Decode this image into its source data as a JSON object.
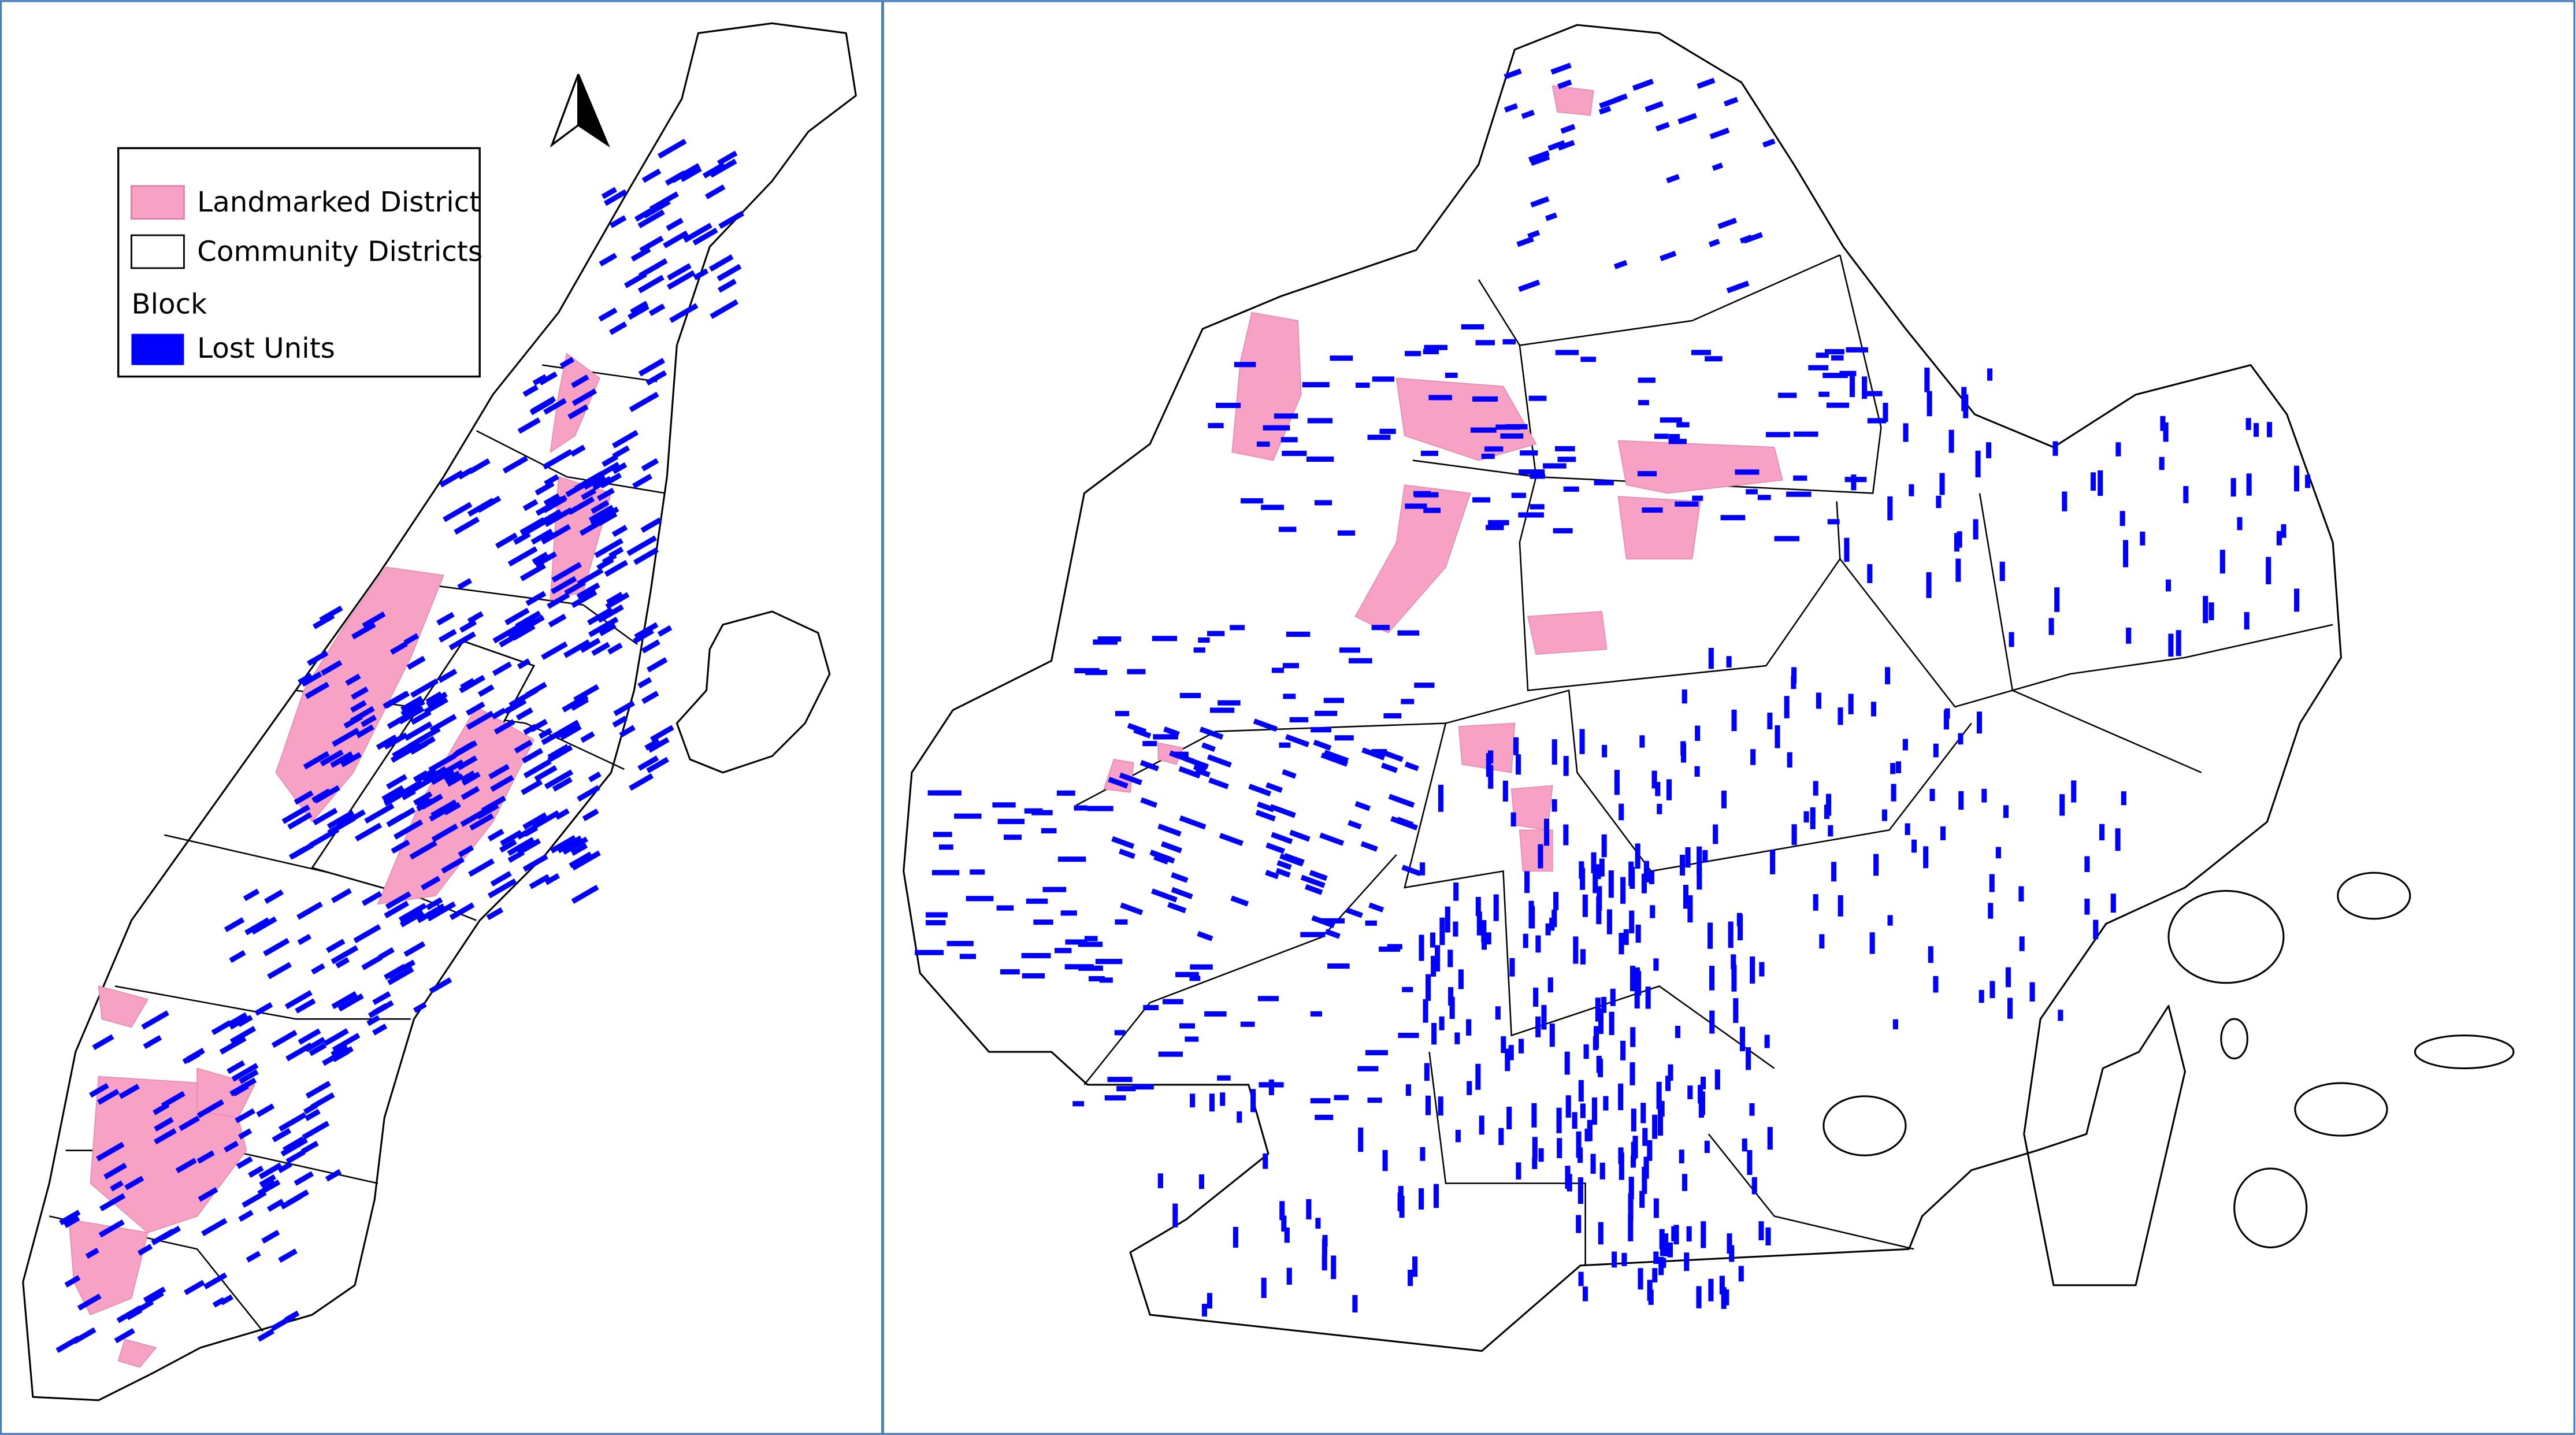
{
  "legend": {
    "landmarked": "Landmarked District",
    "community": "Community Districts",
    "block_heading": "Block",
    "lost_units": "Lost Units"
  }
}
